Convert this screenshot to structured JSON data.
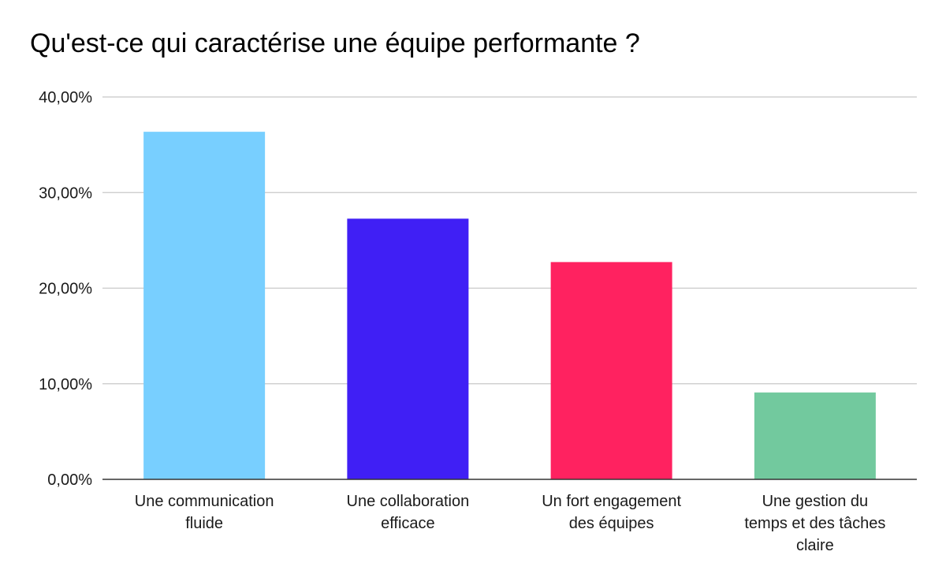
{
  "chart_data": {
    "type": "bar",
    "title": "Qu'est-ce qui caractérise une équipe performante ?",
    "xlabel": "",
    "ylabel": "",
    "categories": [
      [
        "Une communication",
        "fluide"
      ],
      [
        "Une collaboration",
        "efficace"
      ],
      [
        "Un fort engagement",
        "des équipes"
      ],
      [
        "Une gestion du",
        "temps et des tâches",
        "claire"
      ]
    ],
    "values": [
      36.36,
      27.27,
      22.73,
      9.09
    ],
    "colors": [
      "#78cfff",
      "#401ff5",
      "#ff2260",
      "#72c99e"
    ],
    "ylim": [
      0,
      40
    ],
    "yticks": [
      0,
      10,
      20,
      30,
      40
    ],
    "ytick_labels": [
      "0,00%",
      "10,00%",
      "20,00%",
      "30,00%",
      "40,00%"
    ],
    "grid": true,
    "legend": "none"
  }
}
